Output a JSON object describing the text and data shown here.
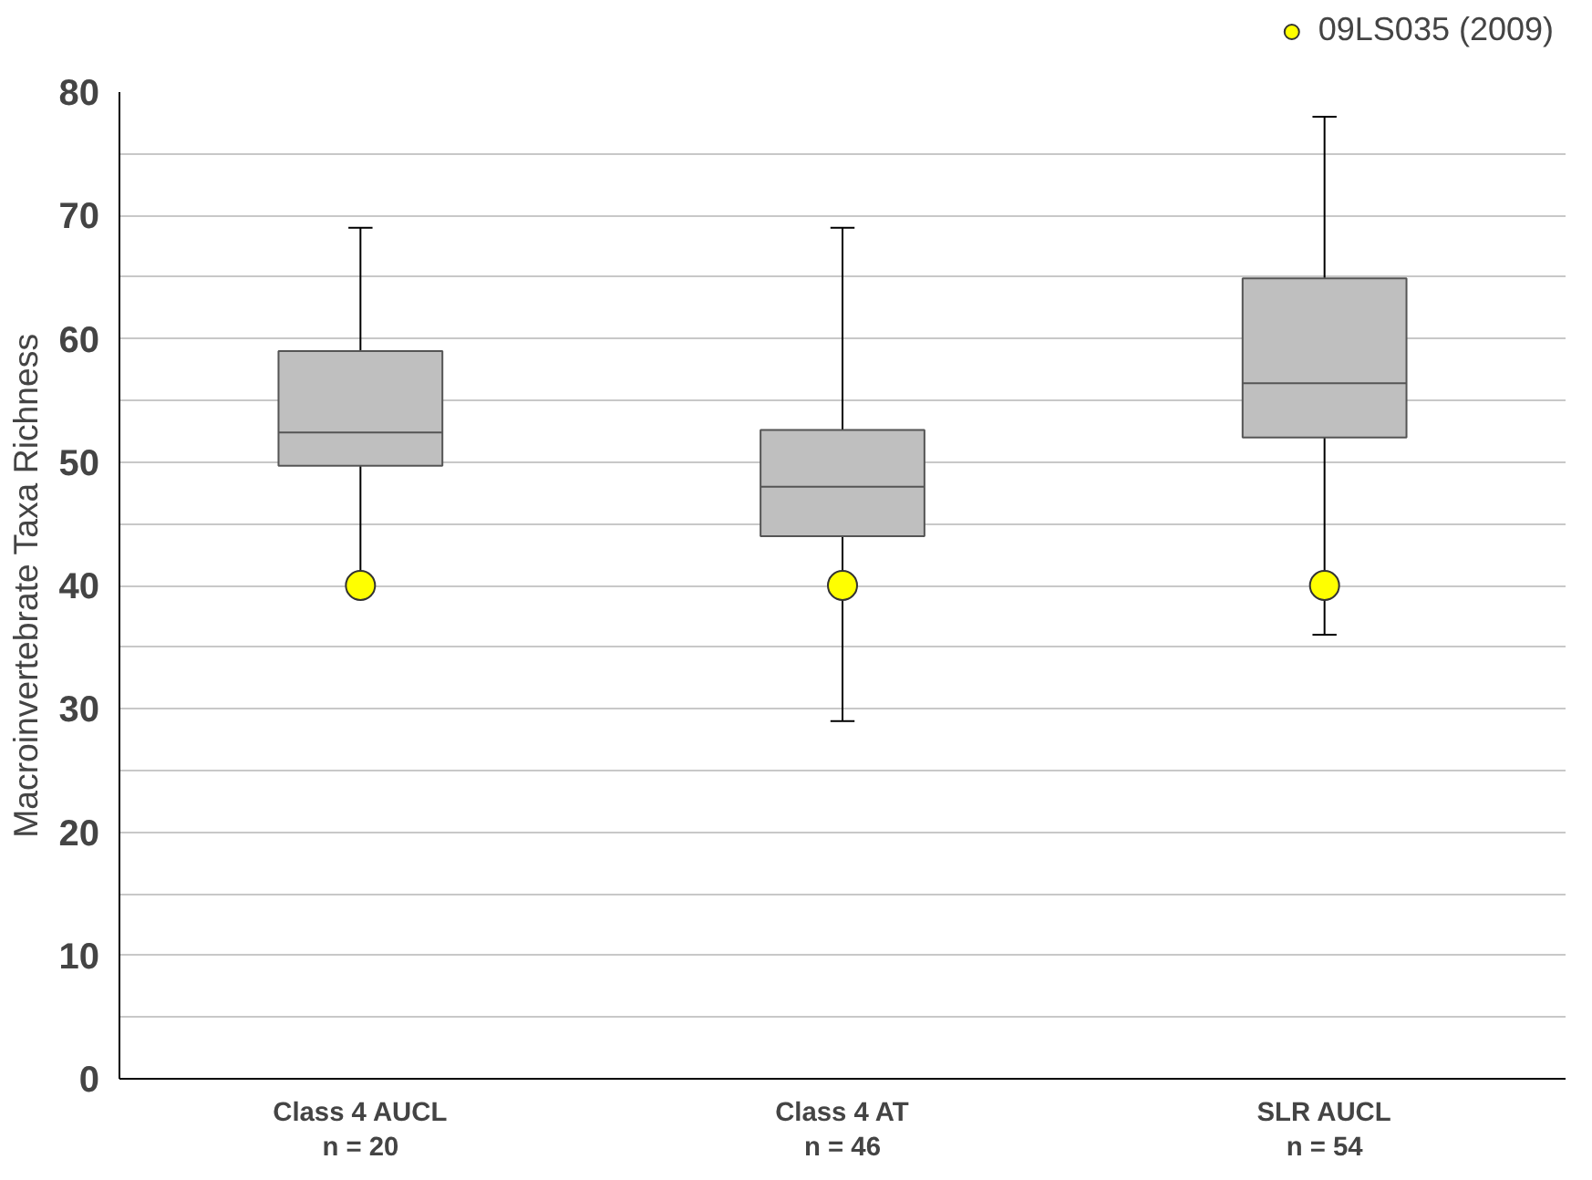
{
  "chart_data": {
    "type": "box",
    "ylabel": "Macroinvertebrate Taxa Richness",
    "categories": [
      "Class 4 AUCL\nn = 20",
      "Class 4 AT\nn = 46",
      "SLR AUCL\nn = 54"
    ],
    "boxes": [
      {
        "low": 40,
        "q1": 49.7,
        "median": 52.4,
        "q3": 59,
        "high": 69
      },
      {
        "low": 29,
        "q1": 44,
        "median": 48,
        "q3": 52.6,
        "high": 69
      },
      {
        "low": 36,
        "q1": 52,
        "median": 56.4,
        "q3": 64.9,
        "high": 78
      }
    ],
    "color": "#bfbfbf",
    "series": [
      {
        "type": "scatter",
        "name": "09LS035 (2009)",
        "color": "#ffff00",
        "x": [
          "Class 4 AUCL\nn = 20",
          "Class 4 AT\nn = 46",
          "SLR AUCL\nn = 54"
        ],
        "values": [
          40,
          40,
          40
        ]
      }
    ],
    "ylim": [
      0,
      80
    ],
    "yticks": [
      0,
      {
        "value": 5,
        "label": null
      },
      10,
      {
        "value": 15,
        "label": null
      },
      20,
      {
        "value": 25,
        "label": null
      },
      30,
      {
        "value": 35,
        "label": null
      },
      40,
      {
        "value": 45,
        "label": null
      },
      50,
      {
        "value": 55,
        "label": null
      },
      60,
      {
        "value": 65,
        "label": null
      },
      70,
      {
        "value": 75,
        "label": null
      },
      80
    ],
    "grid": "y",
    "legend": "top right",
    "marker": "circle"
  }
}
